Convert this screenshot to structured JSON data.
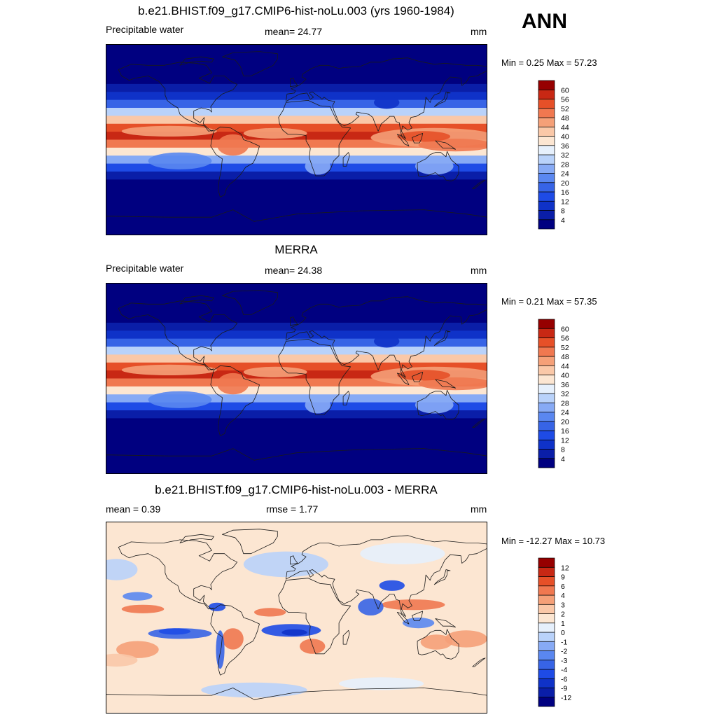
{
  "season": "ANN",
  "panels": [
    {
      "title": "b.e21.BHIST.f09_g17.CMIP6-hist-noLu.003 (yrs 1960-1984)",
      "left": "Precipitable water",
      "center": "mean=  24.77",
      "right": "mm",
      "minmax": "Min =   0.25 Max =  57.23"
    },
    {
      "title": "MERRA",
      "left": "Precipitable water",
      "center": "mean=  24.38",
      "right": "mm",
      "minmax": "Min =   0.21 Max =  57.35"
    },
    {
      "title": "b.e21.BHIST.f09_g17.CMIP6-hist-noLu.003 - MERRA",
      "left": "mean =   0.39",
      "center": "rmse =   1.77",
      "right": "mm",
      "minmax": "Min = -12.27 Max =  10.73"
    }
  ],
  "chart_data": [
    {
      "type": "heatmap",
      "title": "b.e21.BHIST.f09_g17.CMIP6-hist-noLu.003 (yrs 1960-1984)",
      "variable": "Precipitable water",
      "units": "mm",
      "mean": 24.77,
      "min": 0.25,
      "max": 57.23,
      "colorbar_levels": [
        "4",
        "8",
        "12",
        "16",
        "20",
        "24",
        "28",
        "32",
        "36",
        "40",
        "44",
        "48",
        "52",
        "56",
        "60"
      ],
      "colors": [
        "#000080",
        "#0a1ea8",
        "#0f32c8",
        "#1e4be6",
        "#3764e6",
        "#5a87f0",
        "#87aaf5",
        "#b9d2fa",
        "#e6f0fc",
        "#fce6d2",
        "#fac8a8",
        "#f5a078",
        "#f07850",
        "#e65028",
        "#c82814",
        "#960000"
      ]
    },
    {
      "type": "heatmap",
      "title": "MERRA",
      "variable": "Precipitable water",
      "units": "mm",
      "mean": 24.38,
      "min": 0.21,
      "max": 57.35,
      "colorbar_levels": [
        "4",
        "8",
        "12",
        "16",
        "20",
        "24",
        "28",
        "32",
        "36",
        "40",
        "44",
        "48",
        "52",
        "56",
        "60"
      ],
      "colors": [
        "#000080",
        "#0a1ea8",
        "#0f32c8",
        "#1e4be6",
        "#3764e6",
        "#5a87f0",
        "#87aaf5",
        "#b9d2fa",
        "#e6f0fc",
        "#fce6d2",
        "#fac8a8",
        "#f5a078",
        "#f07850",
        "#e65028",
        "#c82814",
        "#960000"
      ]
    },
    {
      "type": "heatmap",
      "title": "b.e21.BHIST.f09_g17.CMIP6-hist-noLu.003 - MERRA",
      "units": "mm",
      "mean": 0.39,
      "rmse": 1.77,
      "min": -12.27,
      "max": 10.73,
      "colorbar_levels": [
        "-12",
        "-9",
        "-6",
        "-4",
        "-3",
        "-2",
        "-1",
        "0",
        "1",
        "2",
        "3",
        "4",
        "6",
        "9",
        "12"
      ],
      "colors": [
        "#000080",
        "#0a1ea8",
        "#0f32c8",
        "#1e4be6",
        "#3764e6",
        "#5a87f0",
        "#87aaf5",
        "#b9d2fa",
        "#e6f0fc",
        "#fce6d2",
        "#fac8a8",
        "#f5a078",
        "#f07850",
        "#e65028",
        "#c82814",
        "#960000"
      ]
    }
  ]
}
